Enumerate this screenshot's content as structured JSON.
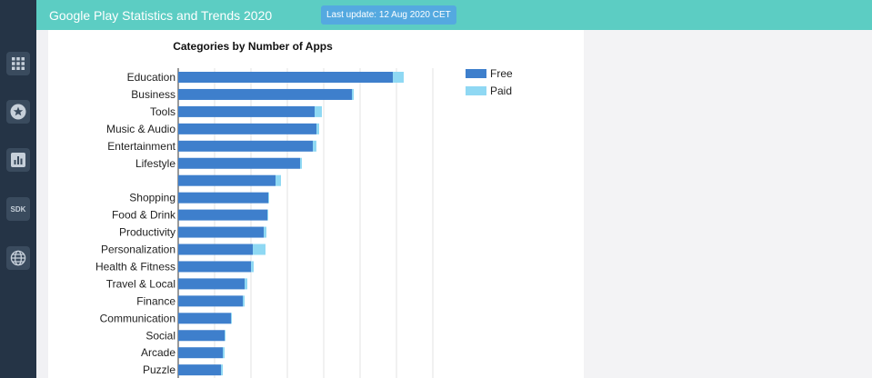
{
  "header": {
    "title": "Google Play Statistics and Trends 2020",
    "last_update": "Last update: 12 Aug 2020 CET"
  },
  "sidebar": {
    "items": [
      {
        "icon": "apps-grid-icon"
      },
      {
        "icon": "star-icon"
      },
      {
        "icon": "bar-chart-icon"
      },
      {
        "icon": "sdk-icon",
        "label": "SDK"
      },
      {
        "icon": "globe-icon"
      }
    ]
  },
  "colors": {
    "free": "#3e7fcc",
    "paid": "#8fd8f3",
    "topbar": "#5ccdc3",
    "update_badge": "#54a9e0",
    "sidebar": "#253446"
  },
  "chart_data": {
    "type": "bar",
    "orientation": "horizontal",
    "stacked": true,
    "title": "Categories by Number of Apps",
    "categories": [
      "Education",
      "Business",
      "Tools",
      "Music & Audio",
      "Entertainment",
      "Lifestyle",
      "",
      "Shopping",
      "Food & Drink",
      "Productivity",
      "Personalization",
      "Health & Fitness",
      "Travel & Local",
      "Finance",
      "Communication",
      "Social",
      "Arcade",
      "Puzzle"
    ],
    "series": [
      {
        "name": "Free",
        "values": [
          236,
          191,
          150,
          152,
          148,
          134,
          107,
          99,
          98,
          94,
          82,
          80,
          73,
          71,
          58,
          51,
          49,
          47
        ]
      },
      {
        "name": "Paid",
        "values": [
          12,
          2,
          8,
          3,
          4,
          2,
          6,
          1,
          1,
          3,
          14,
          3,
          3,
          2,
          1,
          1,
          2,
          2
        ]
      }
    ],
    "xlim": [
      0,
      310
    ],
    "grid": true,
    "legend": "top-right"
  }
}
